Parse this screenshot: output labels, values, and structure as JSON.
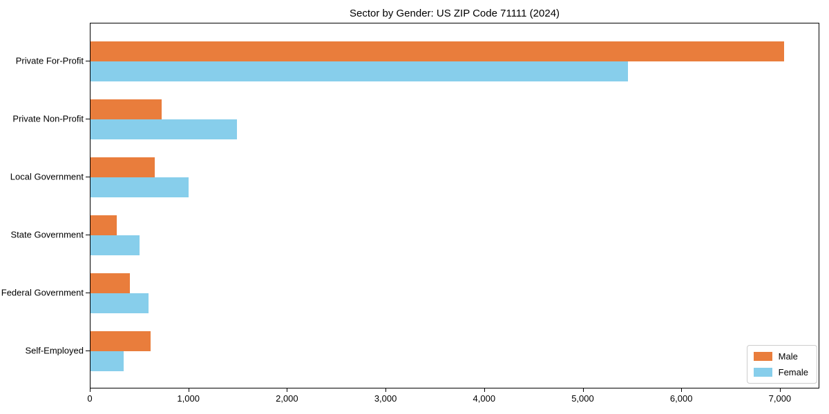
{
  "chart_data": {
    "type": "bar",
    "orientation": "horizontal",
    "title": "Sector by Gender: US ZIP Code 71111 (2024)",
    "categories": [
      "Private For-Profit",
      "Private Non-Profit",
      "Local Government",
      "State Government",
      "Federal Government",
      "Self-Employed"
    ],
    "series": [
      {
        "name": "Male",
        "color": "#e97d3c",
        "values": [
          7050,
          720,
          650,
          270,
          400,
          610
        ]
      },
      {
        "name": "Female",
        "color": "#87ceeb",
        "values": [
          5460,
          1490,
          1000,
          500,
          590,
          335
        ]
      }
    ],
    "xlabel": "",
    "ylabel": "",
    "xlim": [
      0,
      7400
    ],
    "xticks": {
      "values": [
        0,
        1000,
        2000,
        3000,
        4000,
        5000,
        6000,
        7000
      ],
      "labels": [
        "0",
        "1,000",
        "2,000",
        "3,000",
        "4,000",
        "5,000",
        "6,000",
        "7,000"
      ]
    },
    "grid": false,
    "legend": {
      "position": "lower right"
    }
  }
}
